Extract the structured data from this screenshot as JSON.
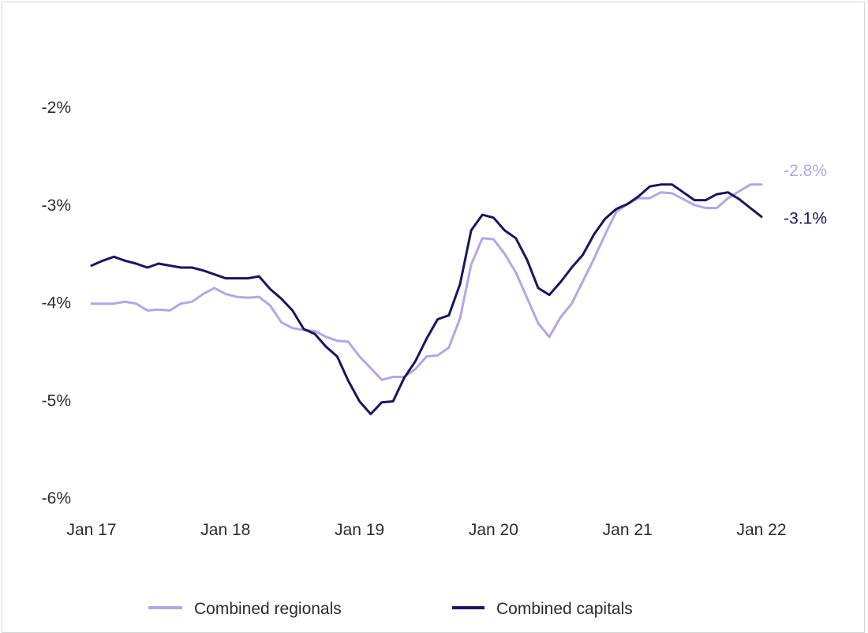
{
  "chart_data": {
    "type": "line",
    "title": "",
    "xlabel": "",
    "ylabel": "",
    "ylim": [
      -6,
      -2
    ],
    "yticks": [
      -2,
      -3,
      -4,
      -5,
      -6
    ],
    "ytick_labels": [
      "-2%",
      "-3%",
      "-4%",
      "-5%",
      "-6%"
    ],
    "xtick_labels": [
      "Jan 17",
      "Jan 18",
      "Jan 19",
      "Jan 20",
      "Jan 21",
      "Jan 22"
    ],
    "x_start": "Jan 2017",
    "x_end": "Jan 2022",
    "grid": false,
    "legend_position": "bottom",
    "series": [
      {
        "name": "Combined regionals",
        "color": "#b3a6e6",
        "end_label": "-2.8%",
        "values": [
          -4.01,
          -4.01,
          -4.01,
          -3.99,
          -4.01,
          -4.08,
          -4.07,
          -4.08,
          -4.01,
          -3.99,
          -3.91,
          -3.85,
          -3.91,
          -3.94,
          -3.95,
          -3.94,
          -4.03,
          -4.2,
          -4.26,
          -4.28,
          -4.29,
          -4.35,
          -4.39,
          -4.4,
          -4.55,
          -4.67,
          -4.79,
          -4.76,
          -4.76,
          -4.68,
          -4.55,
          -4.54,
          -4.46,
          -4.16,
          -3.61,
          -3.34,
          -3.35,
          -3.5,
          -3.69,
          -3.95,
          -4.21,
          -4.35,
          -4.15,
          -4.01,
          -3.78,
          -3.55,
          -3.3,
          -3.07,
          -2.99,
          -2.93,
          -2.93,
          -2.87,
          -2.88,
          -2.94,
          -3.0,
          -3.03,
          -3.03,
          -2.93,
          -2.86,
          -2.79,
          -2.79
        ]
      },
      {
        "name": "Combined capitals",
        "color": "#17165e",
        "end_label": "-3.1%",
        "values": [
          -3.62,
          -3.57,
          -3.53,
          -3.57,
          -3.6,
          -3.64,
          -3.6,
          -3.62,
          -3.64,
          -3.64,
          -3.67,
          -3.71,
          -3.75,
          -3.75,
          -3.75,
          -3.73,
          -3.86,
          -3.96,
          -4.08,
          -4.27,
          -4.32,
          -4.45,
          -4.55,
          -4.8,
          -5.01,
          -5.14,
          -5.02,
          -5.01,
          -4.77,
          -4.6,
          -4.37,
          -4.17,
          -4.13,
          -3.81,
          -3.26,
          -3.1,
          -3.13,
          -3.26,
          -3.34,
          -3.56,
          -3.85,
          -3.92,
          -3.79,
          -3.64,
          -3.51,
          -3.3,
          -3.14,
          -3.04,
          -2.99,
          -2.91,
          -2.81,
          -2.79,
          -2.79,
          -2.87,
          -2.95,
          -2.95,
          -2.89,
          -2.87,
          -2.94,
          -3.03,
          -3.12
        ]
      }
    ]
  }
}
